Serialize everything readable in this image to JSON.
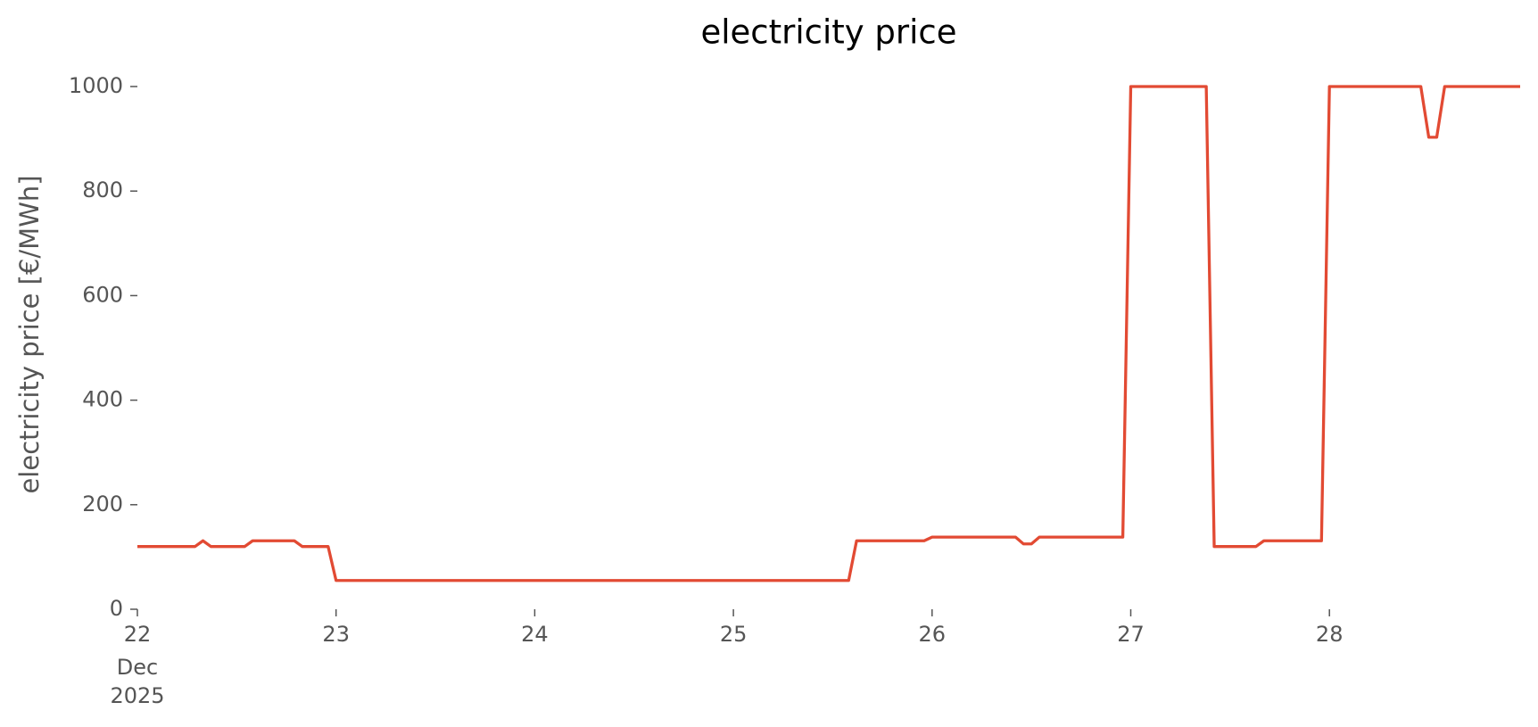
{
  "chart_data": {
    "type": "line",
    "title": "electricity price",
    "ylabel": "electricity price [€/MWh]",
    "x": [
      22,
      22.29,
      22.33,
      22.37,
      22.54,
      22.58,
      22.79,
      22.83,
      22.96,
      23,
      25.58,
      25.62,
      25.96,
      26,
      26.42,
      26.46,
      26.5,
      26.54,
      26.96,
      27,
      27.38,
      27.42,
      27.63,
      27.67,
      27.96,
      28,
      28.46,
      28.5,
      28.54,
      28.58,
      28.96
    ],
    "series": [
      {
        "name": "electricity price",
        "color": "#e24a33",
        "values": [
          120,
          120,
          131,
          120,
          120,
          131,
          131,
          120,
          120,
          55,
          55,
          131,
          131,
          138,
          138,
          125,
          125,
          138,
          138,
          1000,
          1000,
          120,
          120,
          131,
          131,
          1000,
          1000,
          903,
          903,
          1000,
          1000
        ]
      }
    ],
    "xlim": [
      22,
      28.96
    ],
    "xticks": [
      22,
      23,
      24,
      25,
      26,
      27,
      28
    ],
    "x_date_label": [
      "Dec",
      "2025"
    ],
    "ylim": [
      0,
      1000
    ],
    "yticks": [
      0,
      200,
      400,
      600,
      800,
      1000
    ],
    "grid": false
  }
}
